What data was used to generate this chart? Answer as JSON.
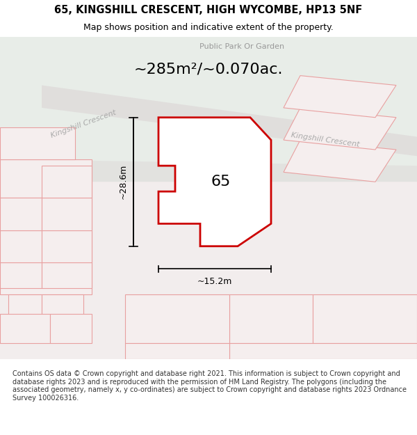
{
  "title": "65, KINGSHILL CRESCENT, HIGH WYCOMBE, HP13 5NF",
  "subtitle": "Map shows position and indicative extent of the property.",
  "area_text": "~285m²/~0.070ac.",
  "park_label": "Public Park Or Garden",
  "road_label_left": "Kingshill Crescent",
  "road_label_right": "Kingshill Crescent",
  "property_number": "65",
  "dim_width": "~15.2m",
  "dim_height": "~28.6m",
  "footer_text": "Contains OS data © Crown copyright and database right 2021. This information is subject to Crown copyright and database rights 2023 and is reproduced with the permission of HM Land Registry. The polygons (including the associated geometry, namely x, y co-ordinates) are subject to Crown copyright and database rights 2023 Ordnance Survey 100026316.",
  "bg_color_top": "#eef2ee",
  "bg_color_main": "#f0eeee",
  "map_bg": "#f5f0f0",
  "road_color": "#e8e0e0",
  "property_fill": "#ffffff",
  "property_edge": "#cc0000",
  "other_property_edge": "#e8a0a0",
  "other_property_fill": "#f5eeee",
  "title_bg": "#ffffff",
  "footer_bg": "#ffffff",
  "dimension_line_color": "#000000",
  "fig_width": 6.0,
  "fig_height": 6.25
}
